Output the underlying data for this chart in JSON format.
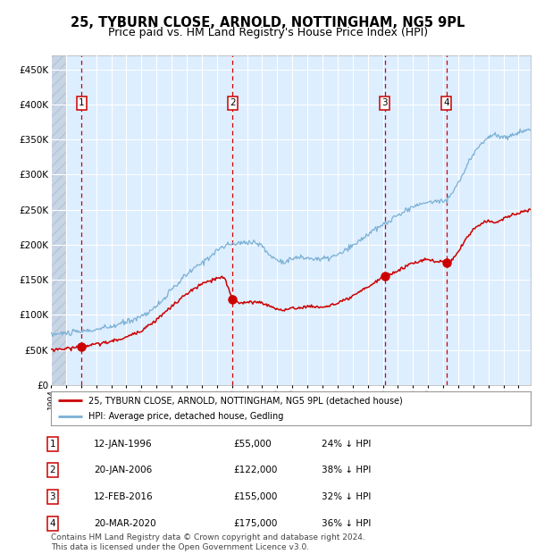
{
  "title": "25, TYBURN CLOSE, ARNOLD, NOTTINGHAM, NG5 9PL",
  "subtitle": "Price paid vs. HM Land Registry's House Price Index (HPI)",
  "title_fontsize": 10.5,
  "subtitle_fontsize": 9,
  "ylabel_ticks": [
    "£0",
    "£50K",
    "£100K",
    "£150K",
    "£200K",
    "£250K",
    "£300K",
    "£350K",
    "£400K",
    "£450K"
  ],
  "ytick_values": [
    0,
    50000,
    100000,
    150000,
    200000,
    250000,
    300000,
    350000,
    400000,
    450000
  ],
  "ylim": [
    0,
    470000
  ],
  "xlim_start": 1994.0,
  "xlim_end": 2025.8,
  "hpi_color": "#7ab0d4",
  "price_color": "#cc0000",
  "bg_color": "#ddeeff",
  "grid_color": "#ffffff",
  "sale_dates": [
    1996.04,
    2006.05,
    2016.12,
    2020.22
  ],
  "sale_prices": [
    55000,
    122000,
    155000,
    175000
  ],
  "sale_labels": [
    "1",
    "2",
    "3",
    "4"
  ],
  "vline_color": "#cc0000",
  "marker_color": "#cc0000",
  "legend_house_label": "25, TYBURN CLOSE, ARNOLD, NOTTINGHAM, NG5 9PL (detached house)",
  "legend_hpi_label": "HPI: Average price, detached house, Gedling",
  "table_rows": [
    [
      "1",
      "12-JAN-1996",
      "£55,000",
      "24% ↓ HPI"
    ],
    [
      "2",
      "20-JAN-2006",
      "£122,000",
      "38% ↓ HPI"
    ],
    [
      "3",
      "12-FEB-2016",
      "£155,000",
      "32% ↓ HPI"
    ],
    [
      "4",
      "20-MAR-2020",
      "£175,000",
      "36% ↓ HPI"
    ]
  ],
  "footnote": "Contains HM Land Registry data © Crown copyright and database right 2024.\nThis data is licensed under the Open Government Licence v3.0.",
  "footnote_fontsize": 6.5,
  "hatch_end": 1995.08
}
